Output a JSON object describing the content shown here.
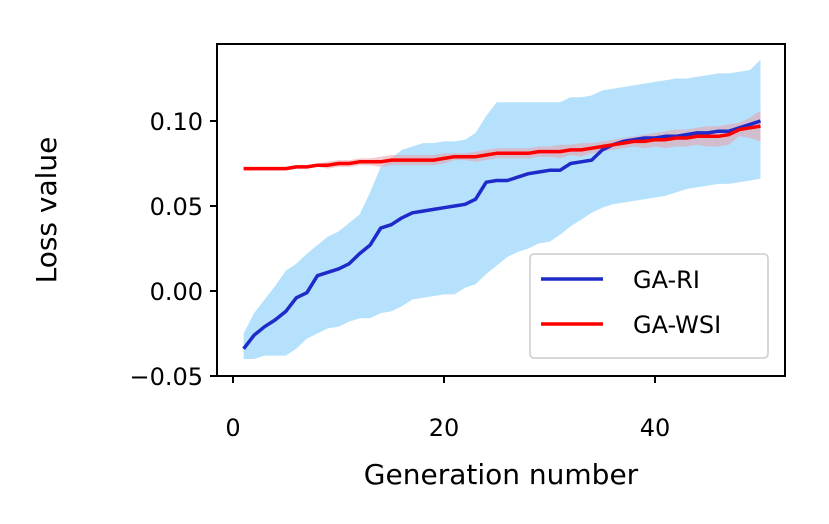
{
  "chart_data": {
    "type": "line",
    "title": "",
    "xlabel": "Generation number",
    "ylabel": "Loss value",
    "xlim": [
      -1.5,
      52.5
    ],
    "ylim": [
      -0.05,
      0.145
    ],
    "xticks": [
      0,
      20,
      40
    ],
    "xtick_labels": [
      "0",
      "20",
      "40"
    ],
    "yticks": [
      -0.05,
      0.0,
      0.05,
      0.1
    ],
    "ytick_labels": [
      "−0.05",
      "0.00",
      "0.05",
      "0.10"
    ],
    "grid": false,
    "legend_position": "lower-right",
    "series": [
      {
        "name": "GA-RI",
        "color": "#1f2bc8",
        "band_color": "#87cefa",
        "x": [
          1,
          2,
          3,
          4,
          5,
          6,
          7,
          8,
          9,
          10,
          11,
          12,
          13,
          14,
          15,
          16,
          17,
          18,
          19,
          20,
          21,
          22,
          23,
          24,
          25,
          26,
          27,
          28,
          29,
          30,
          31,
          32,
          33,
          34,
          35,
          36,
          37,
          38,
          39,
          40,
          41,
          42,
          43,
          44,
          45,
          46,
          47,
          48,
          49,
          50
        ],
        "mean": [
          -0.034,
          -0.026,
          -0.021,
          -0.017,
          -0.012,
          -0.004,
          -0.001,
          0.009,
          0.011,
          0.013,
          0.016,
          0.022,
          0.027,
          0.037,
          0.039,
          0.043,
          0.046,
          0.047,
          0.048,
          0.049,
          0.05,
          0.051,
          0.054,
          0.064,
          0.065,
          0.065,
          0.067,
          0.069,
          0.07,
          0.071,
          0.071,
          0.075,
          0.076,
          0.077,
          0.083,
          0.086,
          0.088,
          0.089,
          0.09,
          0.09,
          0.091,
          0.091,
          0.092,
          0.093,
          0.093,
          0.094,
          0.094,
          0.096,
          0.098,
          0.1
        ],
        "upper": [
          -0.025,
          -0.013,
          -0.005,
          0.003,
          0.012,
          0.016,
          0.022,
          0.027,
          0.032,
          0.035,
          0.04,
          0.045,
          0.058,
          0.073,
          0.078,
          0.083,
          0.085,
          0.087,
          0.087,
          0.088,
          0.088,
          0.089,
          0.093,
          0.103,
          0.111,
          0.111,
          0.111,
          0.111,
          0.111,
          0.111,
          0.111,
          0.114,
          0.114,
          0.115,
          0.118,
          0.119,
          0.12,
          0.121,
          0.122,
          0.123,
          0.124,
          0.125,
          0.125,
          0.126,
          0.127,
          0.128,
          0.128,
          0.129,
          0.13,
          0.136
        ],
        "lower": [
          -0.04,
          -0.04,
          -0.038,
          -0.038,
          -0.038,
          -0.034,
          -0.028,
          -0.025,
          -0.022,
          -0.021,
          -0.018,
          -0.016,
          -0.016,
          -0.013,
          -0.012,
          -0.009,
          -0.005,
          -0.004,
          -0.003,
          -0.002,
          -0.002,
          0.002,
          0.004,
          0.01,
          0.015,
          0.02,
          0.023,
          0.025,
          0.028,
          0.029,
          0.033,
          0.038,
          0.042,
          0.046,
          0.049,
          0.051,
          0.052,
          0.053,
          0.054,
          0.055,
          0.056,
          0.058,
          0.06,
          0.061,
          0.062,
          0.063,
          0.063,
          0.064,
          0.065,
          0.066
        ]
      },
      {
        "name": "GA-WSI",
        "color": "#ff0000",
        "band_color": "#e9a0a8",
        "x": [
          1,
          2,
          3,
          4,
          5,
          6,
          7,
          8,
          9,
          10,
          11,
          12,
          13,
          14,
          15,
          16,
          17,
          18,
          19,
          20,
          21,
          22,
          23,
          24,
          25,
          26,
          27,
          28,
          29,
          30,
          31,
          32,
          33,
          34,
          35,
          36,
          37,
          38,
          39,
          40,
          41,
          42,
          43,
          44,
          45,
          46,
          47,
          48,
          49,
          50
        ],
        "mean": [
          0.072,
          0.072,
          0.072,
          0.072,
          0.072,
          0.073,
          0.073,
          0.074,
          0.074,
          0.075,
          0.075,
          0.076,
          0.076,
          0.076,
          0.077,
          0.077,
          0.077,
          0.077,
          0.077,
          0.078,
          0.079,
          0.079,
          0.079,
          0.08,
          0.081,
          0.081,
          0.081,
          0.081,
          0.082,
          0.082,
          0.082,
          0.083,
          0.083,
          0.084,
          0.085,
          0.086,
          0.087,
          0.088,
          0.088,
          0.089,
          0.089,
          0.09,
          0.09,
          0.091,
          0.091,
          0.091,
          0.092,
          0.095,
          0.096,
          0.097
        ],
        "upper": [
          0.073,
          0.073,
          0.073,
          0.073,
          0.073,
          0.074,
          0.074,
          0.075,
          0.076,
          0.077,
          0.077,
          0.078,
          0.078,
          0.079,
          0.08,
          0.08,
          0.08,
          0.08,
          0.08,
          0.081,
          0.081,
          0.081,
          0.082,
          0.083,
          0.084,
          0.084,
          0.084,
          0.084,
          0.085,
          0.085,
          0.086,
          0.086,
          0.087,
          0.087,
          0.088,
          0.089,
          0.09,
          0.091,
          0.092,
          0.093,
          0.094,
          0.095,
          0.095,
          0.096,
          0.097,
          0.097,
          0.098,
          0.099,
          0.102,
          0.106
        ],
        "lower": [
          0.071,
          0.071,
          0.071,
          0.071,
          0.071,
          0.072,
          0.072,
          0.073,
          0.072,
          0.073,
          0.073,
          0.074,
          0.074,
          0.073,
          0.074,
          0.074,
          0.074,
          0.074,
          0.074,
          0.075,
          0.077,
          0.077,
          0.076,
          0.077,
          0.078,
          0.078,
          0.078,
          0.078,
          0.079,
          0.079,
          0.078,
          0.08,
          0.079,
          0.081,
          0.082,
          0.083,
          0.084,
          0.085,
          0.084,
          0.085,
          0.084,
          0.085,
          0.085,
          0.086,
          0.085,
          0.085,
          0.086,
          0.091,
          0.09,
          0.088
        ]
      }
    ]
  }
}
